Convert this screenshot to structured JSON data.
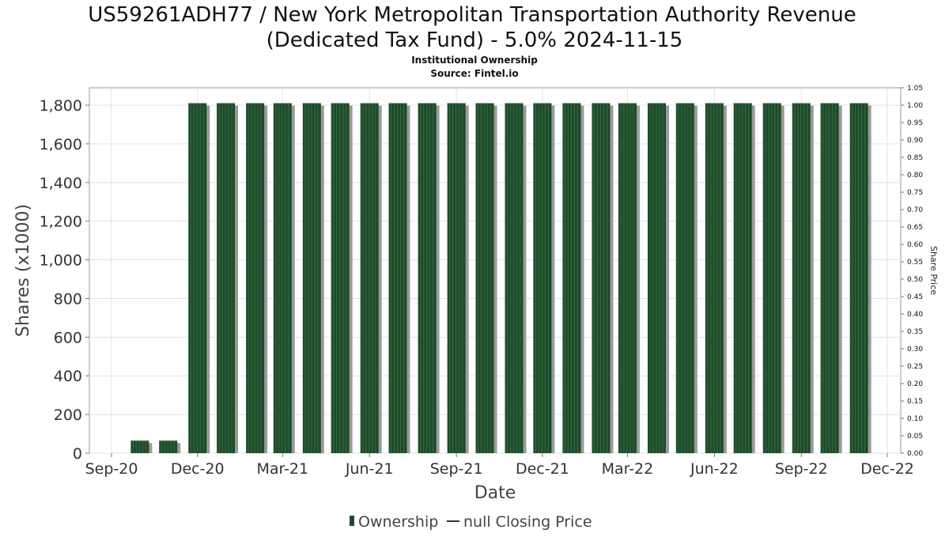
{
  "chart_data": {
    "type": "bar",
    "title_line1": "US59261ADH77 / New York Metropolitan Transportation Authority Revenue",
    "title_line2": "(Dedicated Tax Fund) - 5.0% 2024-11-15",
    "subtitle1": "Institutional Ownership",
    "subtitle2": "Source: Fintel.io",
    "xlabel": "Date",
    "ylabel": "Shares (x1000)",
    "y2label": "Share Price",
    "x_ticks": [
      "Sep-20",
      "Dec-20",
      "Mar-21",
      "Jun-21",
      "Sep-21",
      "Dec-21",
      "Mar-22",
      "Jun-22",
      "Sep-22",
      "Dec-22"
    ],
    "y_ticks": [
      "0",
      "200",
      "400",
      "600",
      "800",
      "1,000",
      "1,200",
      "1,400",
      "1,600",
      "1,800"
    ],
    "y_tick_values": [
      0,
      200,
      400,
      600,
      800,
      1000,
      1200,
      1400,
      1600,
      1800
    ],
    "y2_ticks": [
      "0.00",
      "0.05",
      "0.10",
      "0.15",
      "0.20",
      "0.25",
      "0.30",
      "0.35",
      "0.40",
      "0.45",
      "0.50",
      "0.55",
      "0.60",
      "0.65",
      "0.70",
      "0.75",
      "0.80",
      "0.85",
      "0.90",
      "0.95",
      "1.00",
      "1.05"
    ],
    "ylim": [
      0,
      1890
    ],
    "y2lim": [
      0,
      1.05
    ],
    "grid": true,
    "legend_position": "bottom-center",
    "legend": [
      {
        "label": "Ownership",
        "kind": "bar"
      },
      {
        "label": "null Closing Price",
        "kind": "line"
      }
    ],
    "bar_color": "#1f4a2a",
    "bar_stripe_color": "#2e6a3c",
    "bar_shadow_color": "#9a9a9a",
    "series": [
      {
        "name": "Ownership",
        "x": [
          "2020-10-01",
          "2020-10-31",
          "2020-12-01",
          "2020-12-31",
          "2021-01-31",
          "2021-03-01",
          "2021-04-01",
          "2021-05-01",
          "2021-06-01",
          "2021-07-01",
          "2021-08-01",
          "2021-09-01",
          "2021-10-01",
          "2021-11-01",
          "2021-12-01",
          "2022-01-01",
          "2022-02-01",
          "2022-03-01",
          "2022-04-01",
          "2022-05-01",
          "2022-06-01",
          "2022-07-01",
          "2022-08-01",
          "2022-09-01",
          "2022-10-01",
          "2022-11-01"
        ],
        "values": [
          65,
          65,
          1810,
          1810,
          1810,
          1810,
          1810,
          1810,
          1810,
          1810,
          1810,
          1810,
          1810,
          1810,
          1810,
          1810,
          1810,
          1810,
          1810,
          1810,
          1810,
          1810,
          1810,
          1810,
          1810,
          1810
        ]
      }
    ]
  }
}
